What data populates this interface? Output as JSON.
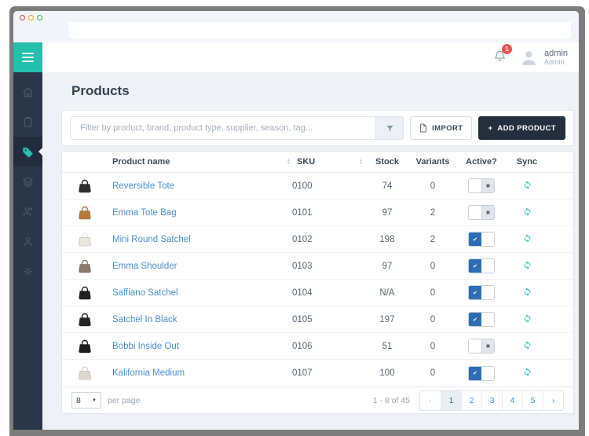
{
  "colors": {
    "accent_teal": "#26beac",
    "sidebar_navy": "#2b3649",
    "link_blue": "#4a8fce",
    "toggle_on_blue": "#2e6db4",
    "sync_teal": "#3ec3bd",
    "badge_red": "#ed5450",
    "dark_button": "#232e3f"
  },
  "topbar": {
    "notification_count": "1",
    "username": "admin",
    "role": "Admin"
  },
  "sidebar": {
    "items": [
      {
        "id": "home",
        "active": false
      },
      {
        "id": "orders",
        "active": false
      },
      {
        "id": "products",
        "active": true
      },
      {
        "id": "collections",
        "active": false
      },
      {
        "id": "customers",
        "active": false
      },
      {
        "id": "account",
        "active": false
      },
      {
        "id": "settings",
        "active": false
      }
    ]
  },
  "page": {
    "title": "Products"
  },
  "toolbar": {
    "filter_placeholder": "Filter by product, brand, product type, supplier, season, tag...",
    "import_label": "IMPORT",
    "add_product_label": "ADD PRODUCT",
    "add_glyph": "+"
  },
  "table": {
    "columns": [
      {
        "label": "Product name",
        "sortable": true
      },
      {
        "label": "SKU",
        "sortable": true
      },
      {
        "label": "Stock",
        "sortable": false
      },
      {
        "label": "Variants",
        "sortable": false
      },
      {
        "label": "Active?",
        "sortable": false
      },
      {
        "label": "Sync",
        "sortable": false
      }
    ],
    "sort_up_glyph": "▲",
    "sort_down_glyph": "▼",
    "toggle_on_glyph": "✔",
    "toggle_off_glyph": "✖",
    "rows": [
      {
        "name": "Reversible Tote",
        "sku": "0100",
        "stock": "74",
        "variants": "0",
        "active": false,
        "thumb_color": "#2e2e2e"
      },
      {
        "name": "Emma Tote Bag",
        "sku": "0101",
        "stock": "97",
        "variants": "2",
        "active": false,
        "thumb_color": "#b5793a"
      },
      {
        "name": "Mini Round Satchel",
        "sku": "0102",
        "stock": "198",
        "variants": "2",
        "active": true,
        "thumb_color": "#e9e5df"
      },
      {
        "name": "Emma Shoulder",
        "sku": "0103",
        "stock": "97",
        "variants": "0",
        "active": true,
        "thumb_color": "#8d7a6c"
      },
      {
        "name": "Saffiano Satchel",
        "sku": "0104",
        "stock": "N/A",
        "variants": "0",
        "active": true,
        "thumb_color": "#222222"
      },
      {
        "name": "Satchel In Black",
        "sku": "0105",
        "stock": "197",
        "variants": "0",
        "active": true,
        "thumb_color": "#26262a"
      },
      {
        "name": "Bobbi Inside Out",
        "sku": "0106",
        "stock": "51",
        "variants": "0",
        "active": false,
        "thumb_color": "#1e1e1e"
      },
      {
        "name": "Kalifornia Medium",
        "sku": "0107",
        "stock": "100",
        "variants": "0",
        "active": true,
        "thumb_color": "#ddd8d0"
      }
    ]
  },
  "pagination": {
    "per_page": "8",
    "per_page_label": "per page",
    "caret_glyph": "▼",
    "range_label": "1 - 8 of 45",
    "prev_glyph": "‹",
    "next_glyph": "›",
    "pages": [
      "1",
      "2",
      "3",
      "4",
      "5"
    ],
    "active_page": "1"
  }
}
